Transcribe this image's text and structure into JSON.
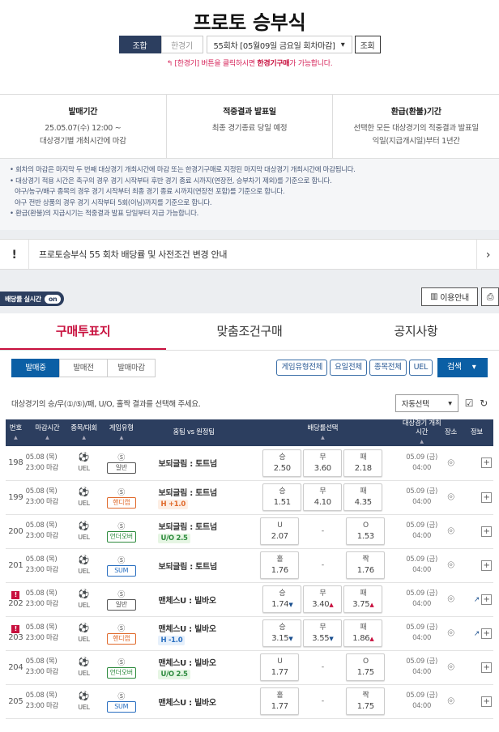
{
  "header": {
    "title": "프로토 승부식",
    "combo_label": "조합",
    "single_label": "한경기",
    "round_select": "55회차 [05월09일 금요일 회차마감]",
    "search_label": "조회",
    "hint_pre": "[한경기] 버튼을 클릭하시면 ",
    "hint_bold": "한경기구매",
    "hint_post": "가 가능합니다."
  },
  "info": [
    {
      "title": "발매기간",
      "line1": "25.05.07(수) 12:00 ~",
      "line2": "대상경기별 개최시간에 마감"
    },
    {
      "title": "적중결과 발표일",
      "line1": "최종 경기종료 당일 예정",
      "line2": ""
    },
    {
      "title": "환급(환불)기간",
      "line1": "선택한 모든 대상경기의 적중결과 발표일",
      "line2": "익일(지급개시일)부터 1년간"
    }
  ],
  "notes": [
    "• 회차의 마감은 마지막 두 번째 대상경기 개최시간에 마감 또는 한경기구매로 지정된 마지막 대상경기 개최시간에 마감됩니다.",
    "• 대상경기 적용 시간은 축구의 경우 경기 시작부터 후반 경기 종료 시까지(연장전, 승부차기 제외)를 기준으로 합니다.",
    "  야구/농구/배구 종목의 경우 경기 시작부터 최종 경기 종료 시까지(연장전 포함)를 기준으로 합니다.",
    "  야구 전반 상품의 경우 경기 시작부터 5회(이닝)까지를 기준으로 합니다.",
    "• 환급(환불)의 지급시기는 적중결과 발표 당일부터 지급 가능합니다."
  ],
  "notice": {
    "text": "프로토승부식 55 회차 배당률 및 사전조건 변경 안내"
  },
  "toolbar": {
    "live_odds": "배당률 실시간",
    "live_state": "on",
    "guide": "이용안내"
  },
  "tabs": [
    "구매투표지",
    "맞춤조건구매",
    "공지사항"
  ],
  "filters": {
    "status": [
      "발매중",
      "발매전",
      "발매마감"
    ],
    "chips": [
      "게임유형전체",
      "요일전체",
      "종목전체",
      "UEL"
    ],
    "search": "검색"
  },
  "instruction": "대상경기의 승/무(①/⑤)/패, U/O, 홀짝 결과를 선택해 주세요.",
  "auto_select": "자동선택",
  "columns": [
    "번호",
    "마감시간",
    "종목/대회",
    "게임유형",
    "홈팀 vs 원정팀",
    "배당률선택",
    "대상경기 개최시간",
    "장소",
    "정보"
  ],
  "colors": {
    "navy": "#2c3e5f",
    "accent": "#c8103e",
    "blue": "#0b5fa5",
    "handicap": "#e06a2c",
    "underover": "#2e8b3e",
    "sum": "#2a6fc0"
  },
  "rows": [
    {
      "no": "198",
      "date": "05.08 (목)",
      "close": "23:00 마감",
      "league": "UEL",
      "type": "일반",
      "match": "보되글림 : 토트넘",
      "sub": "",
      "odds": [
        [
          "승",
          "2.50",
          ""
        ],
        [
          "무",
          "3.60",
          ""
        ],
        [
          "패",
          "2.18",
          ""
        ]
      ],
      "kick_date": "05.09 (금)",
      "kick_time": "04:00"
    },
    {
      "no": "199",
      "date": "05.08 (목)",
      "close": "23:00 마감",
      "league": "UEL",
      "type": "핸디캡",
      "match": "보되글림 : 토트넘",
      "sub": "H +1.0",
      "odds": [
        [
          "승",
          "1.51",
          ""
        ],
        [
          "무",
          "4.10",
          ""
        ],
        [
          "패",
          "4.35",
          ""
        ]
      ],
      "kick_date": "05.09 (금)",
      "kick_time": "04:00"
    },
    {
      "no": "200",
      "date": "05.08 (목)",
      "close": "23:00 마감",
      "league": "UEL",
      "type": "언더오버",
      "match": "보되글림 : 토트넘",
      "sub": "U/O 2.5",
      "odds": [
        [
          "U",
          "2.07",
          ""
        ],
        null,
        [
          "O",
          "1.53",
          ""
        ]
      ],
      "kick_date": "05.09 (금)",
      "kick_time": "04:00"
    },
    {
      "no": "201",
      "date": "05.08 (목)",
      "close": "23:00 마감",
      "league": "UEL",
      "type": "SUM",
      "match": "보되글림 : 토트넘",
      "sub": "",
      "odds": [
        [
          "홀",
          "1.76",
          ""
        ],
        null,
        [
          "짝",
          "1.76",
          ""
        ]
      ],
      "kick_date": "05.09 (금)",
      "kick_time": "04:00"
    },
    {
      "no": "202",
      "alert": "!",
      "date": "05.08 (목)",
      "close": "23:00 마감",
      "league": "UEL",
      "type": "일반",
      "match": "맨체스U : 빌바오",
      "sub": "",
      "odds": [
        [
          "승",
          "1.74",
          "down"
        ],
        [
          "무",
          "3.40",
          "up"
        ],
        [
          "패",
          "3.75",
          "up"
        ]
      ],
      "kick_date": "05.09 (금)",
      "kick_time": "04:00",
      "trend": true
    },
    {
      "no": "203",
      "alert": "!",
      "date": "05.08 (목)",
      "close": "23:00 마감",
      "league": "UEL",
      "type": "핸디캡",
      "match": "맨체스U : 빌바오",
      "sub": "H -1.0",
      "odds": [
        [
          "승",
          "3.15",
          "down"
        ],
        [
          "무",
          "3.55",
          "down"
        ],
        [
          "패",
          "1.86",
          "up"
        ]
      ],
      "kick_date": "05.09 (금)",
      "kick_time": "04:00",
      "trend": true
    },
    {
      "no": "204",
      "date": "05.08 (목)",
      "close": "23:00 마감",
      "league": "UEL",
      "type": "언더오버",
      "match": "맨체스U : 빌바오",
      "sub": "U/O 2.5",
      "odds": [
        [
          "U",
          "1.77",
          ""
        ],
        null,
        [
          "O",
          "1.75",
          ""
        ]
      ],
      "kick_date": "05.09 (금)",
      "kick_time": "04:00"
    },
    {
      "no": "205",
      "date": "05.08 (목)",
      "close": "23:00 마감",
      "league": "UEL",
      "type": "SUM",
      "match": "맨체스U : 빌바오",
      "sub": "",
      "odds": [
        [
          "홀",
          "1.77",
          ""
        ],
        null,
        [
          "짝",
          "1.75",
          ""
        ]
      ],
      "kick_date": "05.09 (금)",
      "kick_time": "04:00"
    }
  ]
}
